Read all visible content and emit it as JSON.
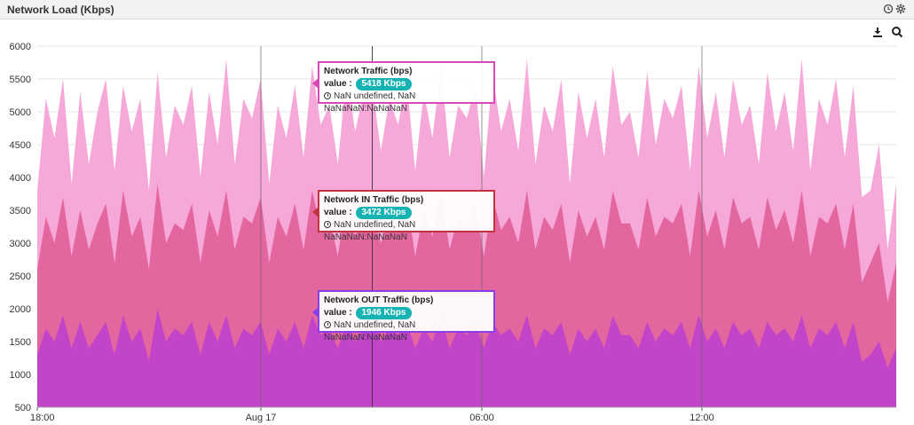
{
  "panel": {
    "title": "Network Load (Kbps)",
    "icons": [
      "clock-icon",
      "gear-icon"
    ],
    "toolbar_icons": [
      "download-icon",
      "zoom-icon"
    ]
  },
  "colors": {
    "total": "#f6a8d8",
    "in": "#e4669f",
    "out": "#c244c8",
    "grid": "#e6e6e6",
    "badge": "#17b3b3"
  },
  "tooltips": [
    {
      "title": "Network Traffic (bps)",
      "label": "value :",
      "value": "5418 Kbps",
      "time": "NaN undefined, NaN NaNaNaN:NaNaNaN",
      "border": "#d64ab8"
    },
    {
      "title": "Network IN Traffic (bps)",
      "label": "value :",
      "value": "3472 Kbps",
      "time": "NaN undefined, NaN NaNaNaN:NaNaNaN",
      "border": "#c0333f"
    },
    {
      "title": "Network OUT Traffic (bps)",
      "label": "value :",
      "value": "1946 Kbps",
      "time": "NaN undefined, NaN NaNaNaN:NaNaNaN",
      "border": "#8a3ee6"
    }
  ],
  "chart_data": {
    "type": "area",
    "stacked": false,
    "title": "Network Load (Kbps)",
    "ylim": [
      500,
      6000
    ],
    "yticks": [
      500,
      1000,
      1500,
      2000,
      2500,
      3000,
      3500,
      4000,
      4500,
      5000,
      5500,
      6000
    ],
    "xticks": [
      "18:00",
      "Aug 17",
      "06:00",
      "12:00"
    ],
    "grid": true,
    "crosshair_index": 39,
    "series": [
      {
        "name": "Network Traffic (bps)",
        "values": [
          3800,
          5200,
          4600,
          5500,
          3900,
          5300,
          4200,
          5000,
          5500,
          4100,
          5400,
          4700,
          5200,
          3800,
          5600,
          4300,
          5100,
          4800,
          5400,
          4000,
          5300,
          4500,
          5800,
          4200,
          5200,
          4900,
          5500,
          3900,
          5100,
          4600,
          5400,
          4300,
          5700,
          4800,
          5100,
          4200,
          5600,
          4700,
          5300,
          5418,
          4400,
          5200,
          4800,
          5500,
          4100,
          5300,
          4600,
          5700,
          4300,
          5100,
          4900,
          5400,
          4000,
          5600,
          4700,
          5200,
          4400,
          5800,
          4200,
          5100,
          4700,
          5500,
          3900,
          5300,
          4600,
          5200,
          4300,
          5700,
          4800,
          5000,
          4300,
          5600,
          4500,
          5200,
          4900,
          5400,
          4100,
          5700,
          4600,
          5300,
          4300,
          5500,
          4800,
          5100,
          4200,
          5600,
          4700,
          5300,
          4400,
          5800,
          4100,
          5200,
          4800,
          5500,
          4300,
          5400,
          3700,
          3800,
          4500,
          2900,
          3900
        ]
      },
      {
        "name": "Network IN Traffic (bps)",
        "values": [
          2600,
          3400,
          3000,
          3700,
          2800,
          3500,
          2900,
          3300,
          3600,
          2700,
          3800,
          3100,
          3400,
          2600,
          3900,
          3000,
          3300,
          3200,
          3600,
          2700,
          3500,
          3100,
          3800,
          2900,
          3400,
          3300,
          3700,
          2700,
          3400,
          3100,
          3600,
          2900,
          3800,
          3200,
          3400,
          2800,
          3700,
          3100,
          3500,
          3472,
          3000,
          3400,
          3300,
          3700,
          2800,
          3500,
          3100,
          3800,
          2900,
          3400,
          3300,
          3600,
          2800,
          3700,
          3200,
          3400,
          3000,
          3800,
          2900,
          3400,
          3200,
          3600,
          2700,
          3500,
          3100,
          3400,
          2900,
          3800,
          3300,
          3300,
          2900,
          3700,
          3100,
          3400,
          3300,
          3600,
          2800,
          3800,
          3100,
          3500,
          2900,
          3700,
          3300,
          3400,
          2900,
          3700,
          3200,
          3500,
          3000,
          3800,
          2800,
          3400,
          3300,
          3600,
          2900,
          3600,
          2400,
          2700,
          3000,
          2100,
          2700
        ]
      },
      {
        "name": "Network OUT Traffic (bps)",
        "values": [
          1300,
          1700,
          1500,
          1900,
          1400,
          1800,
          1400,
          1600,
          1800,
          1300,
          1900,
          1500,
          1700,
          1200,
          2000,
          1500,
          1700,
          1600,
          1800,
          1300,
          1800,
          1500,
          1900,
          1400,
          1700,
          1600,
          1800,
          1300,
          1700,
          1500,
          1800,
          1400,
          1900,
          1600,
          1700,
          1400,
          1800,
          1500,
          1700,
          1946,
          1500,
          1700,
          1600,
          1800,
          1400,
          1700,
          1500,
          1900,
          1400,
          1700,
          1600,
          1800,
          1400,
          1800,
          1600,
          1700,
          1500,
          1900,
          1400,
          1700,
          1600,
          1800,
          1300,
          1700,
          1500,
          1700,
          1400,
          1900,
          1600,
          1600,
          1400,
          1800,
          1500,
          1700,
          1600,
          1800,
          1400,
          1900,
          1500,
          1700,
          1400,
          1800,
          1600,
          1700,
          1400,
          1800,
          1600,
          1700,
          1500,
          1900,
          1400,
          1700,
          1600,
          1800,
          1400,
          1800,
          1200,
          1300,
          1500,
          1100,
          1400
        ]
      }
    ]
  }
}
